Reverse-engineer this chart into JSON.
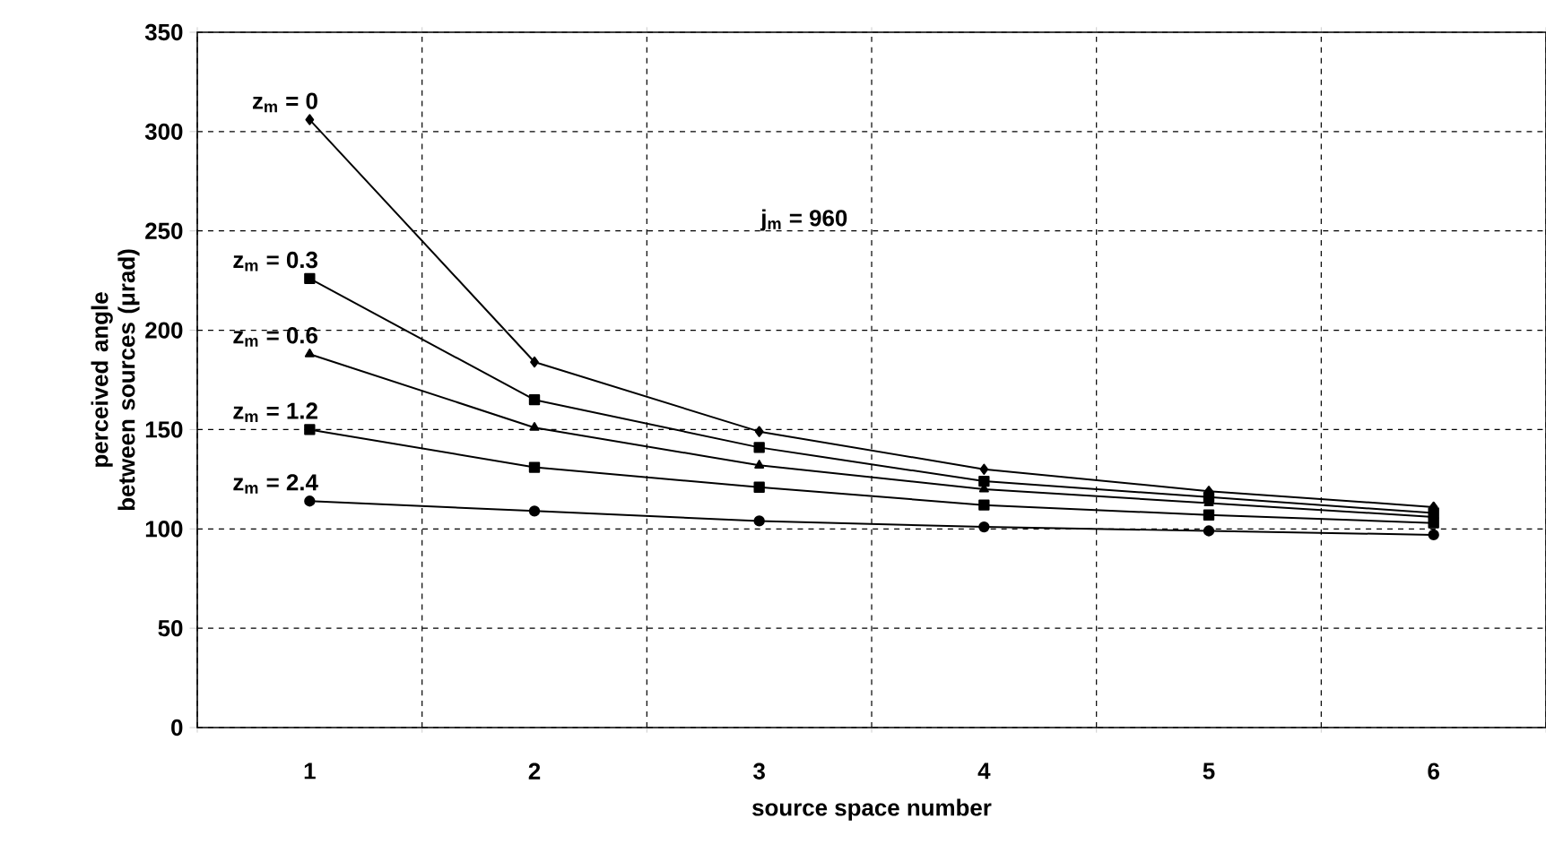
{
  "chart_data": {
    "type": "line",
    "xlabel": "source space number",
    "ylabel": "perceived angle between sources (μrad)",
    "categories": [
      "1",
      "2",
      "3",
      "4",
      "5",
      "6"
    ],
    "series": [
      {
        "name": "z$_{m}$ = 0",
        "color": "#000000",
        "marker": "diamond",
        "values": [
          306,
          184,
          149,
          130,
          119,
          111
        ]
      },
      {
        "name": "z$_{m}$ = 0.3",
        "color": "#000000",
        "marker": "square",
        "values": [
          226,
          165,
          141,
          124,
          116,
          108
        ]
      },
      {
        "name": "z$_{m}$ = 0.6",
        "color": "#000000",
        "marker": "triangle",
        "values": [
          188,
          151,
          132,
          120,
          113,
          106
        ]
      },
      {
        "name": "z$_{m}$ = 1.2",
        "color": "#000000",
        "marker": "square",
        "values": [
          150,
          131,
          121,
          112,
          107,
          103
        ]
      },
      {
        "name": "z$_{m}$ = 2.4",
        "color": "#000000",
        "marker": "circle",
        "values": [
          114,
          109,
          104,
          101,
          99,
          97
        ]
      }
    ],
    "annotations": [
      "j$_{m}$ = 960"
    ],
    "ylim": [
      0,
      350
    ],
    "yticks": [
      0,
      50,
      100,
      150,
      200,
      250,
      300,
      350
    ],
    "grid": true,
    "line_style": "solid"
  }
}
